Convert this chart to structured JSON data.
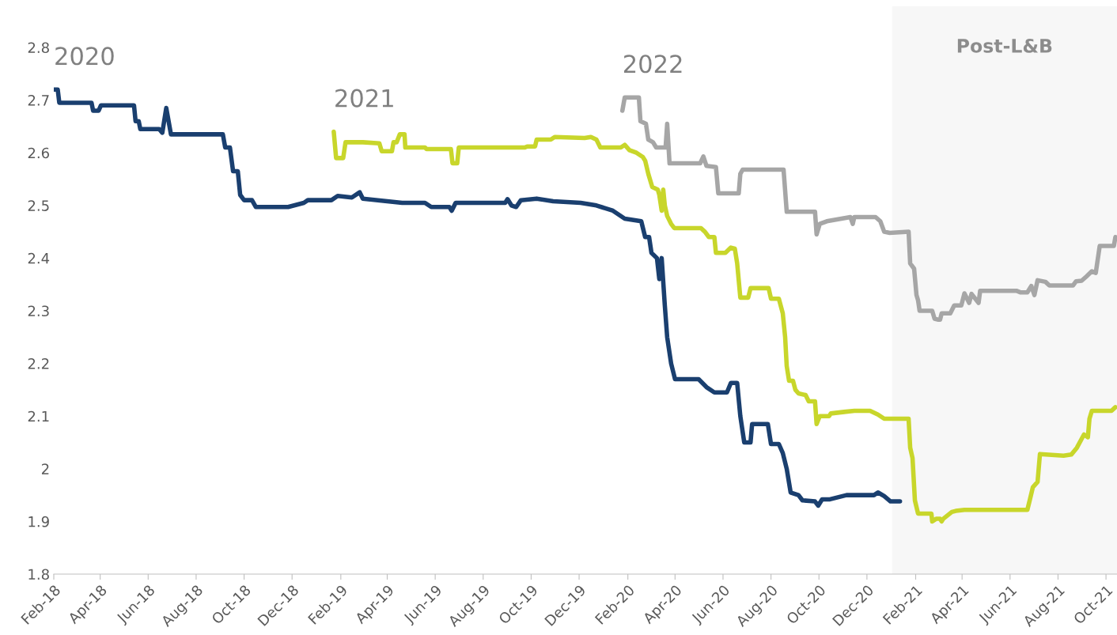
{
  "chart_data": {
    "type": "line",
    "xlim": [
      "2018-02-01",
      "2021-10-15"
    ],
    "ylim": [
      1.8,
      2.8
    ],
    "yticks": [
      1.8,
      1.9,
      2,
      2.1,
      2.2,
      2.3,
      2.4,
      2.5,
      2.6,
      2.7,
      2.8
    ],
    "xticks": [
      {
        "value": "2018-02-01",
        "label": "Feb-18"
      },
      {
        "value": "2018-04-01",
        "label": "Apr-18"
      },
      {
        "value": "2018-06-01",
        "label": "Jun-18"
      },
      {
        "value": "2018-08-01",
        "label": "Aug-18"
      },
      {
        "value": "2018-10-01",
        "label": "Oct-18"
      },
      {
        "value": "2018-12-01",
        "label": "Dec-18"
      },
      {
        "value": "2019-02-01",
        "label": "Feb-19"
      },
      {
        "value": "2019-04-01",
        "label": "Apr-19"
      },
      {
        "value": "2019-06-01",
        "label": "Jun-19"
      },
      {
        "value": "2019-08-01",
        "label": "Aug-19"
      },
      {
        "value": "2019-10-01",
        "label": "Oct-19"
      },
      {
        "value": "2019-12-01",
        "label": "Dec-19"
      },
      {
        "value": "2020-02-01",
        "label": "Feb-20"
      },
      {
        "value": "2020-04-01",
        "label": "Apr-20"
      },
      {
        "value": "2020-06-01",
        "label": "Jun-20"
      },
      {
        "value": "2020-08-01",
        "label": "Aug-20"
      },
      {
        "value": "2020-10-01",
        "label": "Oct-20"
      },
      {
        "value": "2020-12-01",
        "label": "Dec-20"
      },
      {
        "value": "2021-02-01",
        "label": "Feb-21"
      },
      {
        "value": "2021-04-01",
        "label": "Apr-21"
      },
      {
        "value": "2021-06-01",
        "label": "Jun-21"
      },
      {
        "value": "2021-08-01",
        "label": "Aug-21"
      },
      {
        "value": "2021-10-01",
        "label": "Oct-21"
      }
    ],
    "grid": false,
    "legend": false,
    "marker": "none",
    "line_style": "solid",
    "bands": [
      {
        "axis": "x",
        "from": "2021-01-02",
        "to": "2021-10-15",
        "label": "Post-L&B",
        "color": "#f7f7f7"
      }
    ],
    "series": [
      {
        "name": "2020",
        "color": "#1a3f6f",
        "x": [
          "2018-02-01",
          "2018-02-06",
          "2018-02-08",
          "2018-03-21",
          "2018-03-23",
          "2018-03-30",
          "2018-04-02",
          "2018-05-14",
          "2018-05-16",
          "2018-05-20",
          "2018-05-22",
          "2018-06-15",
          "2018-06-19",
          "2018-06-24",
          "2018-06-30",
          "2018-09-04",
          "2018-09-07",
          "2018-09-13",
          "2018-09-17",
          "2018-09-23",
          "2018-09-26",
          "2018-10-01",
          "2018-10-11",
          "2018-10-16",
          "2018-11-26",
          "2018-12-16",
          "2018-12-21",
          "2019-01-20",
          "2019-01-28",
          "2019-02-15",
          "2019-02-25",
          "2019-03-01",
          "2019-03-20",
          "2019-04-20",
          "2019-05-19",
          "2019-05-27",
          "2019-06-19",
          "2019-06-22",
          "2019-06-27",
          "2019-08-29",
          "2019-09-01",
          "2019-09-06",
          "2019-09-12",
          "2019-09-18",
          "2019-10-08",
          "2019-10-29",
          "2019-12-03",
          "2019-12-23",
          "2020-01-13",
          "2020-01-28",
          "2020-02-18",
          "2020-02-23",
          "2020-02-28",
          "2020-03-02",
          "2020-03-09",
          "2020-03-12",
          "2020-03-15",
          "2020-03-19",
          "2020-03-22",
          "2020-03-27",
          "2020-04-01",
          "2020-05-01",
          "2020-05-11",
          "2020-05-21",
          "2020-06-06",
          "2020-06-11",
          "2020-06-19",
          "2020-06-23",
          "2020-06-28",
          "2020-07-06",
          "2020-07-08",
          "2020-07-28",
          "2020-08-01",
          "2020-08-11",
          "2020-08-16",
          "2020-08-21",
          "2020-08-26",
          "2020-09-05",
          "2020-09-10",
          "2020-09-26",
          "2020-09-30",
          "2020-10-05",
          "2020-10-15",
          "2020-11-05",
          "2020-12-10",
          "2020-12-15",
          "2020-12-23",
          "2020-12-31",
          "2021-01-12"
        ],
        "values": [
          2.72,
          2.72,
          2.695,
          2.695,
          2.68,
          2.68,
          2.69,
          2.69,
          2.66,
          2.66,
          2.645,
          2.645,
          2.638,
          2.685,
          2.635,
          2.635,
          2.61,
          2.61,
          2.565,
          2.565,
          2.52,
          2.51,
          2.51,
          2.497,
          2.497,
          2.505,
          2.51,
          2.51,
          2.518,
          2.515,
          2.525,
          2.513,
          2.51,
          2.505,
          2.505,
          2.497,
          2.497,
          2.49,
          2.505,
          2.505,
          2.512,
          2.5,
          2.497,
          2.51,
          2.513,
          2.508,
          2.505,
          2.5,
          2.49,
          2.475,
          2.47,
          2.44,
          2.44,
          2.41,
          2.4,
          2.36,
          2.4,
          2.31,
          2.25,
          2.2,
          2.17,
          2.17,
          2.155,
          2.145,
          2.145,
          2.163,
          2.163,
          2.1,
          2.05,
          2.05,
          2.085,
          2.085,
          2.047,
          2.047,
          2.03,
          2.0,
          1.955,
          1.95,
          1.94,
          1.938,
          1.93,
          1.942,
          1.942,
          1.95,
          1.95,
          1.955,
          1.948,
          1.938,
          1.938
        ]
      },
      {
        "name": "2021",
        "color": "#c8d62b",
        "x": [
          "2019-01-23",
          "2019-01-26",
          "2019-02-04",
          "2019-02-07",
          "2019-03-01",
          "2019-03-22",
          "2019-03-25",
          "2019-04-07",
          "2019-04-09",
          "2019-04-13",
          "2019-04-17",
          "2019-04-23",
          "2019-04-24",
          "2019-05-19",
          "2019-05-21",
          "2019-06-21",
          "2019-06-23",
          "2019-06-29",
          "2019-07-01",
          "2019-09-23",
          "2019-09-26",
          "2019-10-06",
          "2019-10-08",
          "2019-10-26",
          "2019-10-31",
          "2019-12-08",
          "2019-12-16",
          "2019-12-23",
          "2019-12-28",
          "2020-01-23",
          "2020-01-28",
          "2020-02-03",
          "2020-02-12",
          "2020-02-20",
          "2020-02-23",
          "2020-02-27",
          "2020-03-03",
          "2020-03-10",
          "2020-03-12",
          "2020-03-15",
          "2020-03-17",
          "2020-03-19",
          "2020-03-22",
          "2020-03-27",
          "2020-03-31",
          "2020-05-04",
          "2020-05-09",
          "2020-05-14",
          "2020-05-21",
          "2020-05-23",
          "2020-06-04",
          "2020-06-11",
          "2020-06-16",
          "2020-06-19",
          "2020-06-23",
          "2020-07-03",
          "2020-07-06",
          "2020-07-29",
          "2020-08-01",
          "2020-08-11",
          "2020-08-16",
          "2020-08-19",
          "2020-08-21",
          "2020-08-24",
          "2020-08-29",
          "2020-09-01",
          "2020-09-05",
          "2020-09-14",
          "2020-09-18",
          "2020-09-26",
          "2020-09-28",
          "2020-10-02",
          "2020-10-14",
          "2020-10-16",
          "2020-11-02",
          "2020-11-15",
          "2020-12-05",
          "2020-12-15",
          "2020-12-23",
          "2021-01-23",
          "2021-01-25",
          "2021-01-28",
          "2021-01-31",
          "2021-02-04",
          "2021-02-21",
          "2021-02-22",
          "2021-02-27",
          "2021-03-04",
          "2021-03-06",
          "2021-03-08",
          "2021-03-19",
          "2021-03-24",
          "2021-04-04",
          "2021-06-23",
          "2021-06-26",
          "2021-06-30",
          "2021-07-06",
          "2021-07-09",
          "2021-08-08",
          "2021-08-18",
          "2021-08-25",
          "2021-09-03",
          "2021-09-08",
          "2021-09-10",
          "2021-09-13",
          "2021-10-08",
          "2021-10-13"
        ],
        "values": [
          2.64,
          2.59,
          2.59,
          2.62,
          2.62,
          2.618,
          2.603,
          2.603,
          2.62,
          2.62,
          2.635,
          2.635,
          2.61,
          2.61,
          2.607,
          2.607,
          2.58,
          2.58,
          2.61,
          2.61,
          2.612,
          2.612,
          2.625,
          2.625,
          2.63,
          2.628,
          2.63,
          2.625,
          2.61,
          2.61,
          2.615,
          2.605,
          2.6,
          2.592,
          2.585,
          2.56,
          2.535,
          2.53,
          2.52,
          2.49,
          2.53,
          2.5,
          2.48,
          2.465,
          2.457,
          2.457,
          2.45,
          2.44,
          2.44,
          2.41,
          2.41,
          2.42,
          2.418,
          2.39,
          2.325,
          2.325,
          2.343,
          2.343,
          2.323,
          2.323,
          2.295,
          2.25,
          2.195,
          2.167,
          2.167,
          2.15,
          2.143,
          2.14,
          2.128,
          2.128,
          2.085,
          2.1,
          2.1,
          2.105,
          2.108,
          2.11,
          2.11,
          2.103,
          2.095,
          2.095,
          2.04,
          2.02,
          1.94,
          1.915,
          1.915,
          1.9,
          1.905,
          1.905,
          1.9,
          1.905,
          1.918,
          1.92,
          1.922,
          1.922,
          1.94,
          1.965,
          1.975,
          2.028,
          2.025,
          2.027,
          2.04,
          2.065,
          2.06,
          2.095,
          2.11,
          2.11,
          2.117
        ]
      },
      {
        "name": "2022",
        "color": "#a6a6a6",
        "x": [
          "2020-01-25",
          "2020-01-28",
          "2020-02-15",
          "2020-02-17",
          "2020-02-24",
          "2020-02-27",
          "2020-03-04",
          "2020-03-08",
          "2020-03-20",
          "2020-03-22",
          "2020-03-25",
          "2020-05-03",
          "2020-05-07",
          "2020-05-11",
          "2020-05-23",
          "2020-05-26",
          "2020-06-21",
          "2020-06-23",
          "2020-06-26",
          "2020-08-17",
          "2020-08-21",
          "2020-09-26",
          "2020-09-28",
          "2020-10-02",
          "2020-10-11",
          "2020-11-10",
          "2020-11-13",
          "2020-11-15",
          "2020-12-12",
          "2020-12-18",
          "2020-12-23",
          "2020-12-30",
          "2021-01-23",
          "2021-01-25",
          "2021-01-30",
          "2021-02-02",
          "2021-02-04",
          "2021-02-06",
          "2021-02-22",
          "2021-02-25",
          "2021-03-02",
          "2021-03-04",
          "2021-03-06",
          "2021-03-17",
          "2021-03-22",
          "2021-03-31",
          "2021-04-04",
          "2021-04-10",
          "2021-04-13",
          "2021-04-22",
          "2021-04-24",
          "2021-06-09",
          "2021-06-14",
          "2021-06-23",
          "2021-06-28",
          "2021-07-02",
          "2021-07-06",
          "2021-07-16",
          "2021-07-21",
          "2021-08-20",
          "2021-08-24",
          "2021-08-31",
          "2021-09-06",
          "2021-09-13",
          "2021-09-18",
          "2021-09-23",
          "2021-10-11",
          "2021-10-13"
        ],
        "values": [
          2.68,
          2.705,
          2.705,
          2.66,
          2.655,
          2.625,
          2.62,
          2.61,
          2.61,
          2.655,
          2.58,
          2.58,
          2.593,
          2.575,
          2.573,
          2.523,
          2.523,
          2.56,
          2.568,
          2.568,
          2.488,
          2.488,
          2.445,
          2.465,
          2.47,
          2.478,
          2.465,
          2.478,
          2.478,
          2.47,
          2.45,
          2.448,
          2.45,
          2.39,
          2.38,
          2.33,
          2.32,
          2.3,
          2.3,
          2.285,
          2.283,
          2.283,
          2.295,
          2.295,
          2.31,
          2.31,
          2.333,
          2.315,
          2.332,
          2.315,
          2.338,
          2.338,
          2.335,
          2.335,
          2.347,
          2.33,
          2.358,
          2.355,
          2.348,
          2.348,
          2.356,
          2.357,
          2.365,
          2.375,
          2.372,
          2.423,
          2.423,
          2.44
        ]
      }
    ]
  }
}
